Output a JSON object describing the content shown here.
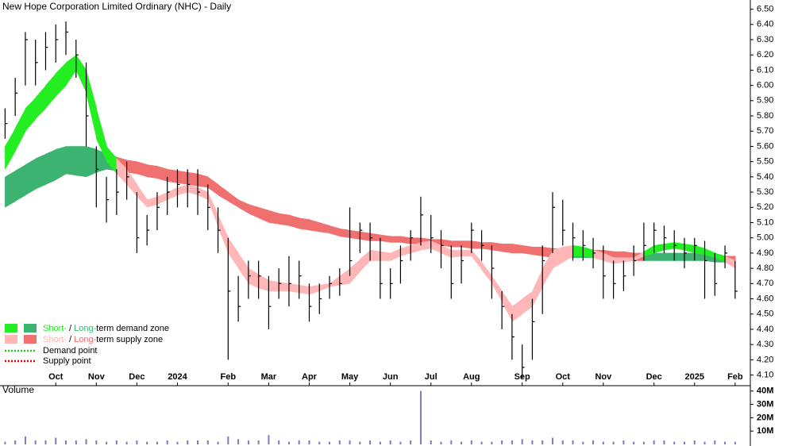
{
  "chart_data": [
    {
      "type": "ohlc",
      "title": "New Hope Corporation Limited Ordinary (NHC) - Daily",
      "categories": [
        null,
        null,
        null,
        null,
        null,
        "Oct",
        null,
        null,
        null,
        "Nov",
        null,
        null,
        null,
        "Dec",
        null,
        null,
        null,
        "2024",
        null,
        null,
        null,
        null,
        "Feb",
        null,
        null,
        null,
        "Mar",
        null,
        null,
        null,
        "Apr",
        null,
        null,
        null,
        "May",
        null,
        null,
        null,
        "Jun",
        null,
        null,
        null,
        "Jul",
        null,
        null,
        null,
        "Aug",
        null,
        null,
        null,
        null,
        "Sep",
        null,
        null,
        null,
        "Oct",
        null,
        null,
        null,
        "Nov",
        null,
        null,
        null,
        null,
        "Dec",
        null,
        null,
        null,
        "2025",
        null,
        null,
        null,
        "Feb"
      ],
      "high": [
        5.85,
        6.05,
        6.35,
        6.3,
        6.35,
        6.4,
        6.42,
        6.3,
        6.15,
        5.6,
        5.4,
        5.45,
        5.5,
        5.3,
        5.15,
        5.3,
        5.4,
        5.45,
        5.45,
        5.45,
        5.35,
        5.2,
        5.0,
        4.75,
        4.85,
        4.85,
        4.75,
        4.8,
        4.88,
        4.85,
        4.7,
        4.7,
        4.75,
        4.8,
        5.2,
        5.1,
        5.1,
        5.0,
        4.8,
        4.95,
        5.05,
        5.27,
        5.15,
        5.05,
        4.95,
        4.95,
        5.1,
        5.05,
        4.95,
        4.65,
        4.5,
        4.3,
        4.6,
        4.95,
        5.3,
        5.25,
        5.1,
        5.05,
        5.0,
        4.95,
        4.85,
        4.85,
        4.95,
        5.1,
        5.1,
        5.08,
        5.05,
        5.0,
        5.0,
        4.98,
        4.9,
        4.95,
        4.85
      ],
      "low": [
        5.65,
        5.8,
        6.0,
        6.0,
        6.1,
        6.15,
        6.2,
        6.05,
        5.6,
        5.2,
        5.1,
        5.15,
        5.25,
        4.9,
        4.95,
        5.05,
        5.15,
        5.2,
        5.2,
        5.15,
        5.05,
        4.9,
        4.2,
        4.45,
        4.6,
        4.6,
        4.4,
        4.6,
        4.55,
        4.6,
        4.45,
        4.5,
        4.6,
        4.62,
        4.75,
        4.9,
        4.85,
        4.6,
        4.6,
        4.7,
        4.85,
        4.95,
        4.9,
        4.8,
        4.6,
        4.7,
        4.9,
        4.85,
        4.6,
        4.4,
        4.2,
        4.08,
        4.2,
        4.5,
        4.9,
        4.95,
        4.85,
        4.85,
        4.8,
        4.6,
        4.6,
        4.65,
        4.75,
        4.85,
        4.9,
        4.9,
        4.85,
        4.8,
        4.85,
        4.6,
        4.62,
        4.8,
        4.6
      ],
      "close": [
        5.75,
        5.95,
        6.3,
        6.15,
        6.25,
        6.3,
        6.35,
        6.2,
        5.8,
        5.45,
        5.25,
        5.3,
        5.4,
        5.0,
        5.05,
        5.2,
        5.3,
        5.35,
        5.35,
        5.3,
        5.2,
        5.05,
        4.65,
        4.55,
        4.75,
        4.75,
        4.55,
        4.7,
        4.7,
        4.75,
        4.55,
        4.6,
        4.7,
        4.7,
        4.85,
        5.05,
        5.0,
        4.7,
        4.7,
        4.85,
        5.0,
        5.15,
        5.0,
        4.95,
        4.7,
        4.85,
        5.05,
        4.95,
        4.8,
        4.55,
        4.35,
        4.15,
        4.45,
        4.85,
        5.2,
        5.05,
        5.0,
        4.95,
        4.9,
        4.75,
        4.7,
        4.75,
        4.85,
        4.95,
        5.05,
        5.0,
        4.95,
        4.9,
        4.95,
        4.85,
        4.7,
        4.9,
        4.65
      ],
      "short_upper": [
        5.6,
        5.72,
        5.85,
        5.92,
        6.0,
        6.08,
        6.15,
        6.2,
        6.1,
        5.85,
        5.6,
        5.52,
        5.45,
        5.35,
        5.25,
        5.27,
        5.3,
        5.33,
        5.35,
        5.33,
        5.3,
        5.15,
        5.0,
        4.9,
        4.8,
        4.76,
        4.72,
        4.71,
        4.7,
        4.69,
        4.68,
        4.69,
        4.7,
        4.75,
        4.8,
        4.86,
        4.92,
        4.91,
        4.9,
        4.93,
        4.95,
        4.97,
        4.98,
        4.95,
        4.92,
        4.92,
        4.92,
        4.84,
        4.75,
        4.65,
        4.55,
        4.6,
        4.65,
        4.8,
        4.92,
        4.94,
        4.95,
        4.94,
        4.92,
        4.9,
        4.87,
        4.87,
        4.87,
        4.91,
        4.95,
        4.96,
        4.97,
        4.96,
        4.95,
        4.93,
        4.9,
        4.88,
        4.85
      ],
      "short_lower": [
        5.45,
        5.57,
        5.7,
        5.78,
        5.85,
        5.93,
        6.0,
        6.1,
        5.95,
        5.65,
        5.5,
        5.42,
        5.35,
        5.27,
        5.2,
        5.22,
        5.25,
        5.28,
        5.3,
        5.28,
        5.25,
        5.07,
        4.9,
        4.8,
        4.7,
        4.67,
        4.65,
        4.65,
        4.65,
        4.64,
        4.63,
        4.65,
        4.68,
        4.69,
        4.7,
        4.78,
        4.85,
        4.85,
        4.85,
        4.88,
        4.9,
        4.92,
        4.93,
        4.9,
        4.87,
        4.88,
        4.88,
        4.79,
        4.7,
        4.58,
        4.45,
        4.5,
        4.55,
        4.68,
        4.8,
        4.84,
        4.88,
        4.88,
        4.87,
        4.85,
        4.83,
        4.84,
        4.85,
        4.88,
        4.9,
        4.92,
        4.93,
        4.92,
        4.9,
        4.89,
        4.87,
        4.84,
        4.8
      ],
      "long_upper": [
        5.4,
        5.44,
        5.48,
        5.52,
        5.55,
        5.58,
        5.6,
        5.6,
        5.6,
        5.58,
        5.55,
        5.53,
        5.51,
        5.5,
        5.48,
        5.47,
        5.45,
        5.44,
        5.43,
        5.42,
        5.4,
        5.35,
        5.3,
        5.25,
        5.22,
        5.2,
        5.18,
        5.16,
        5.15,
        5.13,
        5.12,
        5.1,
        5.08,
        5.06,
        5.05,
        5.04,
        5.03,
        5.02,
        5.01,
        5.01,
        5.0,
        5.0,
        4.99,
        4.99,
        4.98,
        4.98,
        4.98,
        4.97,
        4.97,
        4.96,
        4.96,
        4.95,
        4.94,
        4.94,
        4.93,
        4.93,
        4.93,
        4.92,
        4.92,
        4.92,
        4.91,
        4.91,
        4.9,
        4.9,
        4.9,
        4.9,
        4.9,
        4.9,
        4.9,
        4.89,
        4.89,
        4.88,
        4.88
      ],
      "long_lower": [
        5.2,
        5.24,
        5.28,
        5.32,
        5.35,
        5.38,
        5.42,
        5.41,
        5.4,
        5.43,
        5.45,
        5.44,
        5.43,
        5.42,
        5.4,
        5.39,
        5.37,
        5.36,
        5.35,
        5.34,
        5.33,
        5.28,
        5.24,
        5.2,
        5.16,
        5.13,
        5.1,
        5.09,
        5.08,
        5.06,
        5.05,
        5.04,
        5.03,
        5.01,
        5.0,
        4.99,
        4.98,
        4.98,
        4.97,
        4.97,
        4.96,
        4.96,
        4.95,
        4.95,
        4.94,
        4.94,
        4.93,
        4.93,
        4.92,
        4.91,
        4.9,
        4.9,
        4.89,
        4.88,
        4.87,
        4.87,
        4.87,
        4.87,
        4.87,
        4.86,
        4.86,
        4.86,
        4.85,
        4.85,
        4.85,
        4.85,
        4.85,
        4.85,
        4.85,
        4.85,
        4.84,
        4.84,
        4.84
      ],
      "bar_color": "#000000",
      "demand_colors": [
        "#22ee22",
        "#3cb371"
      ],
      "supply_colors": [
        "#ffb6b6",
        "#f07070"
      ],
      "ylim": [
        4.03,
        6.55
      ],
      "yticks": [
        {
          "value": 4.1,
          "label": "4.10"
        },
        {
          "value": 4.2,
          "label": "4.20"
        },
        {
          "value": 4.3,
          "label": "4.30"
        },
        {
          "value": 4.4,
          "label": "4.40"
        },
        {
          "value": 4.5,
          "label": "4.50"
        },
        {
          "value": 4.6,
          "label": "4.60"
        },
        {
          "value": 4.7,
          "label": "4.70"
        },
        {
          "value": 4.8,
          "label": "4.80"
        },
        {
          "value": 4.9,
          "label": "4.90"
        },
        {
          "value": 5.0,
          "label": "5.00"
        },
        {
          "value": 5.1,
          "label": "5.10"
        },
        {
          "value": 5.2,
          "label": "5.20"
        },
        {
          "value": 5.3,
          "label": "5.30"
        },
        {
          "value": 5.4,
          "label": "5.40"
        },
        {
          "value": 5.5,
          "label": "5.50"
        },
        {
          "value": 5.6,
          "label": "5.60"
        },
        {
          "value": 5.7,
          "label": "5.70"
        },
        {
          "value": 5.8,
          "label": "5.80"
        },
        {
          "value": 5.9,
          "label": "5.90"
        },
        {
          "value": 6.0,
          "label": "6.00"
        },
        {
          "value": 6.1,
          "label": "6.10"
        },
        {
          "value": 6.2,
          "label": "6.20"
        },
        {
          "value": 6.3,
          "label": "6.30"
        },
        {
          "value": 6.4,
          "label": "6.40"
        },
        {
          "value": 6.5,
          "label": "6.50"
        }
      ],
      "legend": [
        {
          "short": "Short-",
          "sep": "/",
          "long": "Long-",
          "rest": "term demand zone"
        },
        {
          "short": "Short-",
          "sep": "/",
          "long": "Long-",
          "rest": "term supply zone"
        },
        {
          "text": "Demand point",
          "color": "#22cc22"
        },
        {
          "text": "Supply point",
          "color": "#dd0000"
        }
      ]
    },
    {
      "type": "bar",
      "title": "Volume",
      "color": "#7b7bc0",
      "values": [
        2,
        3,
        6,
        3,
        3,
        5,
        3,
        3,
        4,
        3,
        2,
        3,
        2,
        3,
        2,
        2,
        3,
        2,
        3,
        3,
        3,
        2,
        6,
        4,
        3,
        3,
        7,
        3,
        2,
        3,
        3,
        2,
        2,
        3,
        3,
        2,
        3,
        2,
        3,
        2,
        3,
        40,
        3,
        2,
        3,
        2,
        3,
        2,
        2,
        3,
        3,
        4,
        3,
        3,
        5,
        3,
        3,
        2,
        3,
        2,
        2,
        3,
        2,
        2,
        3,
        3,
        2,
        2,
        3,
        2,
        3,
        2,
        2
      ],
      "ylim": [
        0,
        44
      ],
      "yticks": [
        {
          "value": 10,
          "label": "10M"
        },
        {
          "value": 20,
          "label": "20M"
        },
        {
          "value": 30,
          "label": "30M"
        },
        {
          "value": 40,
          "label": "40M"
        }
      ]
    }
  ]
}
